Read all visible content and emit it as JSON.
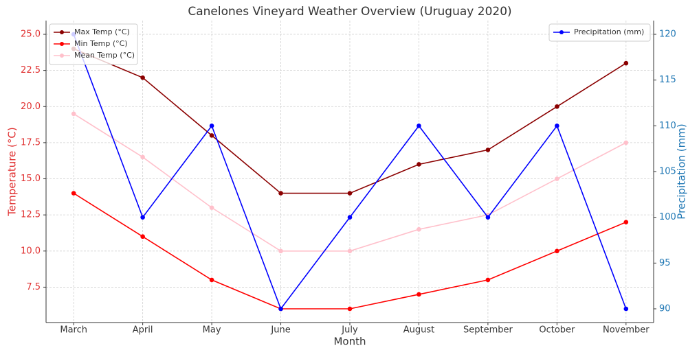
{
  "chart_data": {
    "type": "line",
    "title": "Canelones Vineyard Weather Overview (Uruguay 2020)",
    "x_label": "Month",
    "y_label": "Temperature (°C)",
    "y2_label": "Precipitation (mm)",
    "y_label_color": "#e03030",
    "y2_label_color": "#1f77b4",
    "categories": [
      "March",
      "April",
      "May",
      "June",
      "July",
      "August",
      "September",
      "October",
      "November"
    ],
    "series": [
      {
        "name": "Max Temp (°C)",
        "color": "#8b0000",
        "values": [
          24,
          22,
          18,
          14,
          14,
          16,
          17,
          20,
          23
        ]
      },
      {
        "name": "Min Temp (°C)",
        "color": "#ff0000",
        "values": [
          14,
          11,
          8,
          6,
          6,
          7,
          8,
          10,
          12
        ]
      },
      {
        "name": "Mean Temp (°C)",
        "color": "#ffc0cb",
        "values": [
          19.5,
          16.5,
          13,
          10,
          10,
          11.5,
          12.5,
          15,
          17.5
        ]
      },
      {
        "name": "Precipitation (mm)",
        "color": "#0000ff",
        "axis": "y2",
        "values": [
          120,
          100,
          110,
          90,
          100,
          110,
          100,
          110,
          90
        ]
      }
    ],
    "ylim": [
      5.05,
      25.95
    ],
    "yticks": [
      7.5,
      {
        "value": 10,
        "label": "10.0"
      },
      12.5,
      {
        "value": 15,
        "label": "15.0"
      },
      17.5,
      {
        "value": 20,
        "label": "20.0"
      },
      22.5,
      {
        "value": 25,
        "label": "25.0"
      }
    ],
    "y2lim": [
      88.5,
      121.5
    ],
    "y2ticks": [
      90,
      95,
      100,
      105,
      110,
      115,
      120
    ],
    "grid": true,
    "legend": "upper left",
    "legend2": "upper right"
  }
}
